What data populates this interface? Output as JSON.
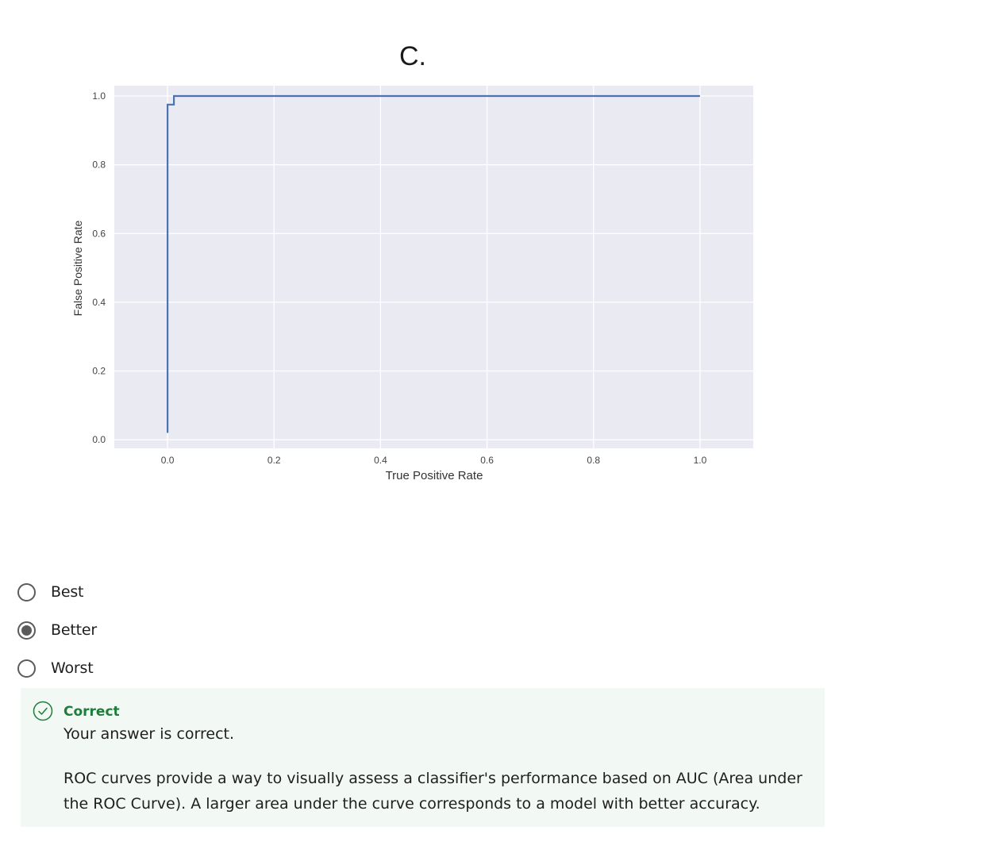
{
  "question_label": "C.",
  "chart_data": {
    "type": "line",
    "title": "",
    "xlabel": "True Positive Rate",
    "ylabel": "False Positive Rate",
    "xlim": [
      -0.1,
      1.1
    ],
    "ylim": [
      -0.025,
      1.03
    ],
    "x_ticks": [
      0.0,
      0.2,
      0.4,
      0.6,
      0.8,
      1.0
    ],
    "x_tick_labels": [
      "0.0",
      "0.2",
      "0.4",
      "0.6",
      "0.8",
      "1.0"
    ],
    "y_ticks": [
      0.0,
      0.2,
      0.4,
      0.6,
      0.8,
      1.0
    ],
    "y_tick_labels": [
      "0.0",
      "0.2",
      "0.4",
      "0.6",
      "0.8",
      "1.0"
    ],
    "grid": true,
    "background": "#eaeaf2",
    "line_color": "#4c72b0",
    "series": [
      {
        "x": [
          0.0,
          0.0,
          0.0,
          0.012,
          0.012,
          1.0
        ],
        "y": [
          0.02,
          0.975,
          0.975,
          0.975,
          1.0,
          1.0
        ]
      }
    ]
  },
  "options": [
    {
      "label": "Best",
      "selected": false
    },
    {
      "label": "Better",
      "selected": true
    },
    {
      "label": "Worst",
      "selected": false
    }
  ],
  "feedback": {
    "icon": "check-circle-icon",
    "status": "Correct",
    "message": "Your answer is correct.",
    "explanation": "ROC curves provide a way to visually assess a classifier's performance based on AUC (Area under the ROC Curve). A larger area under the curve corresponds to a model with better accuracy.",
    "color": "#1e7d3a"
  }
}
